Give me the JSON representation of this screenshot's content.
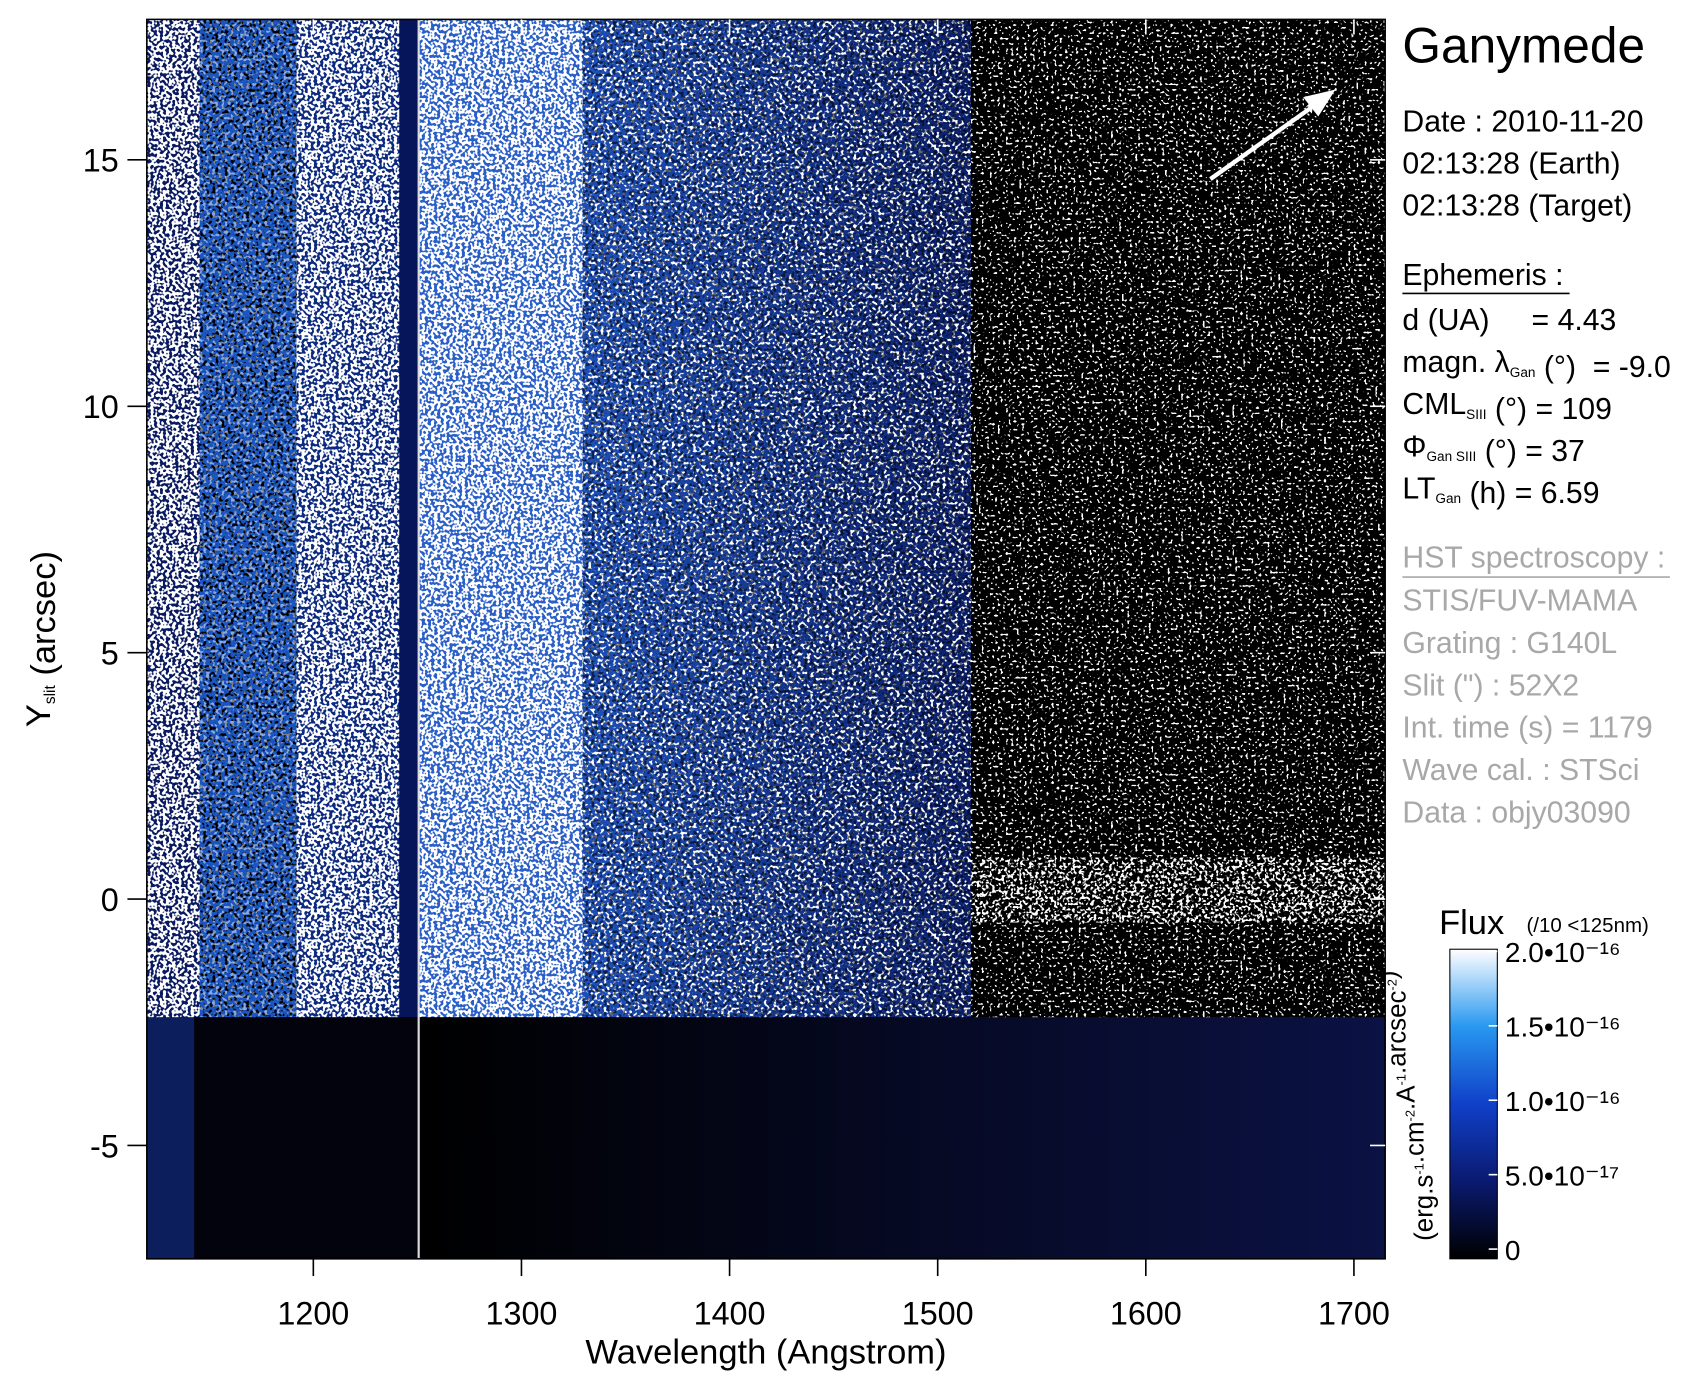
{
  "chart_data": {
    "type": "heatmap",
    "xlabel": "Wavelength (Angstrom)",
    "ylabel": [
      {
        "t": "Y"
      },
      {
        "sub": "slit"
      },
      {
        "t": " (arcsec)"
      }
    ],
    "xlim": [
      1120,
      1715
    ],
    "ylim": [
      -7.3,
      17.85
    ],
    "xticks": [
      1200,
      1300,
      1400,
      1500,
      1600,
      1700
    ],
    "yticks": [
      -5,
      0,
      5,
      10,
      15
    ],
    "colorbar": {
      "title": "Flux",
      "note": "(/10 <125nm)",
      "label": [
        {
          "t": "(erg.s"
        },
        {
          "sup": "-1"
        },
        {
          "t": ".cm"
        },
        {
          "sup": "-2"
        },
        {
          "t": ".A"
        },
        {
          "sup": "-1"
        },
        {
          "t": ".arcsec"
        },
        {
          "sup": "-2"
        },
        {
          "t": ")"
        }
      ],
      "clim": [
        0,
        2e-16
      ],
      "ticks": [
        0,
        {
          "value": 5e-17,
          "label": "5.0•10⁻¹⁷"
        },
        {
          "value": 1e-16,
          "label": "1.0•10⁻¹⁶"
        },
        {
          "value": 1.5e-16,
          "label": "1.5•10⁻¹⁶"
        },
        {
          "value": 2e-16,
          "label": "2.0•10⁻¹⁶"
        }
      ]
    }
  },
  "info": {
    "title": "Ganymede",
    "date": [
      "Date : 2010-11-20",
      "02:13:28 (Earth)",
      "02:13:28 (Target)"
    ],
    "ephemeris": {
      "heading": "Ephemeris :",
      "lines": [
        [
          {
            "t": "d (UA)     = 4.43"
          }
        ],
        [
          {
            "t": "magn. λ"
          },
          {
            "sub": "Gan"
          },
          {
            "t": " (°)  = -9.0"
          }
        ],
        [
          {
            "t": "CML"
          },
          {
            "sub": "SIII"
          },
          {
            "t": " (°) = 109"
          }
        ],
        [
          {
            "t": "Φ"
          },
          {
            "sub": "Gan SIII"
          },
          {
            "t": " (°) = 37"
          }
        ],
        [
          {
            "t": "LT"
          },
          {
            "sub": "Gan"
          },
          {
            "t": " (h) = 6.59"
          }
        ]
      ]
    },
    "observation": {
      "heading": "HST spectroscopy :",
      "lines": [
        "STIS/FUV-MAMA",
        "Grating : G140L",
        "Slit (\") : 52X2",
        "Int. time (s) = 1179",
        "Wave cal. : STSci",
        "Data : objy03090"
      ]
    }
  }
}
